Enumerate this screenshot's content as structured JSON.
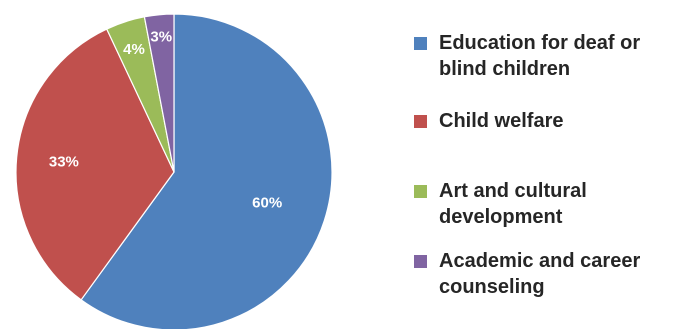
{
  "chart_data": {
    "type": "pie",
    "slices": [
      {
        "label": "Education for deaf or blind children",
        "value": 60,
        "value_label": "60%",
        "color": "#4F81BD"
      },
      {
        "label": "Child welfare",
        "value": 33,
        "value_label": "33%",
        "color": "#C0504D"
      },
      {
        "label": "Art and cultural development",
        "value": 4,
        "value_label": "4%",
        "color": "#9BBB59"
      },
      {
        "label": "Academic and career counseling",
        "value": 3,
        "value_label": "3%",
        "color": "#8064A2"
      }
    ],
    "legend_position": "right",
    "start_angle": "top",
    "direction": "clockwise"
  }
}
